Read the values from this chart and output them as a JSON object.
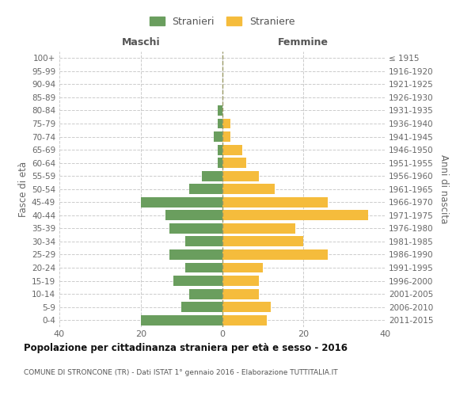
{
  "age_groups": [
    "0-4",
    "5-9",
    "10-14",
    "15-19",
    "20-24",
    "25-29",
    "30-34",
    "35-39",
    "40-44",
    "45-49",
    "50-54",
    "55-59",
    "60-64",
    "65-69",
    "70-74",
    "75-79",
    "80-84",
    "85-89",
    "90-94",
    "95-99",
    "100+"
  ],
  "birth_years": [
    "2011-2015",
    "2006-2010",
    "2001-2005",
    "1996-2000",
    "1991-1995",
    "1986-1990",
    "1981-1985",
    "1976-1980",
    "1971-1975",
    "1966-1970",
    "1961-1965",
    "1956-1960",
    "1951-1955",
    "1946-1950",
    "1941-1945",
    "1936-1940",
    "1931-1935",
    "1926-1930",
    "1921-1925",
    "1916-1920",
    "≤ 1915"
  ],
  "maschi": [
    20,
    10,
    8,
    12,
    9,
    13,
    9,
    13,
    14,
    20,
    8,
    5,
    1,
    1,
    2,
    1,
    1,
    0,
    0,
    0,
    0
  ],
  "femmine": [
    11,
    12,
    9,
    9,
    10,
    26,
    20,
    18,
    36,
    26,
    13,
    9,
    6,
    5,
    2,
    2,
    0,
    0,
    0,
    0,
    0
  ],
  "color_maschi": "#6a9e5e",
  "color_femmine": "#f5bc3c",
  "title_main": "Popolazione per cittadinanza straniera per età e sesso - 2016",
  "title_sub": "COMUNE DI STRONCONE (TR) - Dati ISTAT 1° gennaio 2016 - Elaborazione TUTTITALIA.IT",
  "ylabel_left": "Fasce di età",
  "ylabel_right": "Anni di nascita",
  "header_maschi": "Maschi",
  "header_femmine": "Femmine",
  "legend_maschi": "Stranieri",
  "legend_femmine": "Straniere",
  "xlim": 40,
  "background_color": "#ffffff",
  "grid_color": "#cccccc"
}
